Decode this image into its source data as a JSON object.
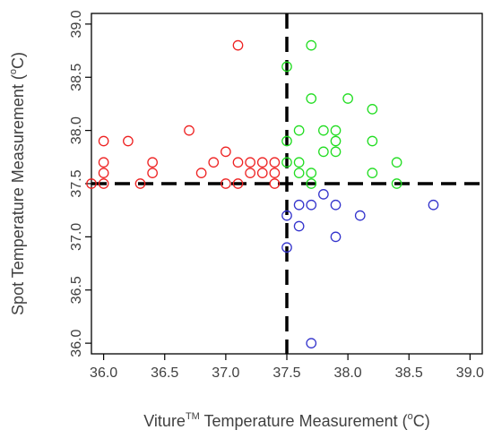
{
  "chart_data": {
    "type": "scatter",
    "title": "",
    "xlabel": {
      "main": "Viture",
      "superscript": "TM",
      "rest": " Temperature Measurement (",
      "unit_sup": "o",
      "unit": "C)"
    },
    "ylabel": {
      "main": "Spot Temperature Measurement (",
      "unit_sup": "o",
      "unit": "C)"
    },
    "xlim": [
      35.9,
      39.1
    ],
    "ylim": [
      35.9,
      39.1
    ],
    "x_ticks": [
      "36.0",
      "36.5",
      "37.0",
      "37.5",
      "38.0",
      "38.5",
      "39.0"
    ],
    "y_ticks": [
      "36.0",
      "36.5",
      "37.0",
      "37.5",
      "38.0",
      "38.5",
      "39.0"
    ],
    "grid": false,
    "reference_lines": {
      "x": 37.5,
      "y": 37.5,
      "style": "dashed"
    },
    "series": [
      {
        "color": "#ee2222",
        "points": [
          [
            35.9,
            37.5
          ],
          [
            36.0,
            37.5
          ],
          [
            36.0,
            37.6
          ],
          [
            36.0,
            37.7
          ],
          [
            36.0,
            37.9
          ],
          [
            36.2,
            37.9
          ],
          [
            36.3,
            37.5
          ],
          [
            36.4,
            37.6
          ],
          [
            36.4,
            37.7
          ],
          [
            36.7,
            38.0
          ],
          [
            36.8,
            37.6
          ],
          [
            36.9,
            37.7
          ],
          [
            37.0,
            37.8
          ],
          [
            37.0,
            37.5
          ],
          [
            37.1,
            37.5
          ],
          [
            37.1,
            37.7
          ],
          [
            37.2,
            37.6
          ],
          [
            37.2,
            37.7
          ],
          [
            37.3,
            37.6
          ],
          [
            37.3,
            37.7
          ],
          [
            37.4,
            37.6
          ],
          [
            37.4,
            37.7
          ],
          [
            37.4,
            37.5
          ],
          [
            37.1,
            38.8
          ]
        ]
      },
      {
        "color": "#22dd22",
        "points": [
          [
            37.5,
            38.6
          ],
          [
            37.5,
            37.9
          ],
          [
            37.5,
            37.7
          ],
          [
            37.6,
            38.0
          ],
          [
            37.6,
            37.7
          ],
          [
            37.6,
            37.6
          ],
          [
            37.7,
            38.8
          ],
          [
            37.7,
            38.3
          ],
          [
            37.7,
            37.6
          ],
          [
            37.7,
            37.5
          ],
          [
            37.8,
            38.0
          ],
          [
            37.8,
            37.8
          ],
          [
            37.9,
            38.0
          ],
          [
            37.9,
            37.9
          ],
          [
            37.9,
            37.8
          ],
          [
            38.0,
            38.3
          ],
          [
            38.2,
            38.2
          ],
          [
            38.2,
            37.9
          ],
          [
            38.2,
            37.6
          ],
          [
            38.4,
            37.7
          ],
          [
            38.4,
            37.5
          ]
        ]
      },
      {
        "color": "#3333cc",
        "points": [
          [
            37.5,
            37.2
          ],
          [
            37.5,
            36.9
          ],
          [
            37.6,
            37.3
          ],
          [
            37.6,
            37.1
          ],
          [
            37.7,
            37.3
          ],
          [
            37.8,
            37.4
          ],
          [
            37.9,
            37.3
          ],
          [
            37.9,
            37.0
          ],
          [
            38.1,
            37.2
          ],
          [
            38.7,
            37.3
          ],
          [
            37.7,
            36.0
          ]
        ]
      }
    ]
  }
}
